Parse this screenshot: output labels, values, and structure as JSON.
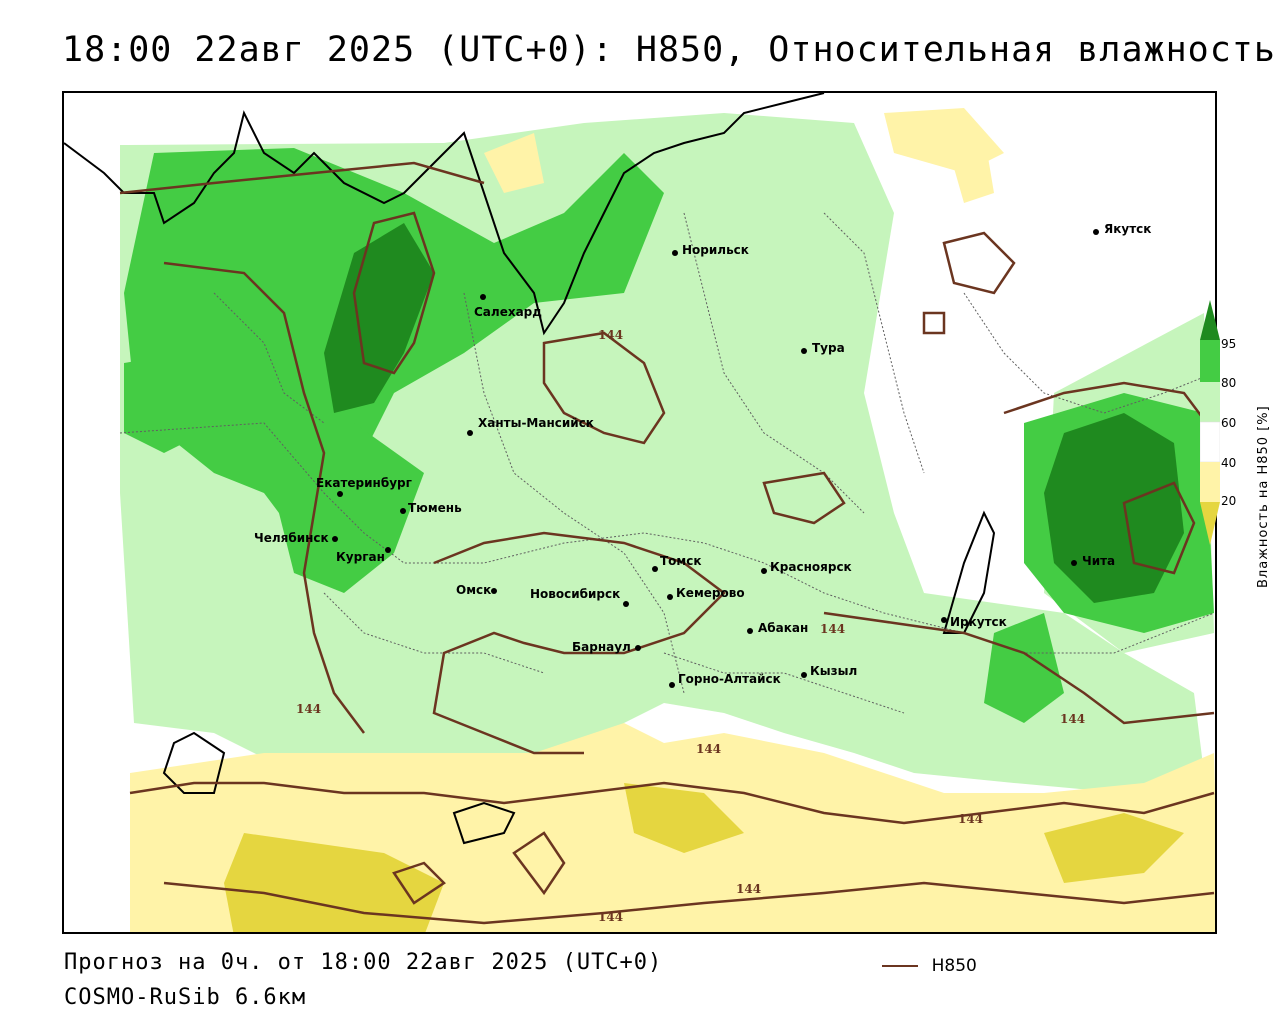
{
  "title": "18:00 22авг 2025 (UTC+0): H850, Относительная влажность",
  "footer": {
    "forecast": "Прогноз на 0ч. от 18:00 22авг 2025 (UTC+0)",
    "model": "COSMO-RuSib 6.6км",
    "line_legend": "H850"
  },
  "legend": {
    "title": "Влажность на H850 [%]",
    "ticks": [
      "95",
      "80",
      "60",
      "40",
      "20"
    ],
    "colors": {
      "c95": "#1f8a1f",
      "c80": "#44cc44",
      "c60": "#c6f5bc",
      "c40": "#ffffff",
      "c20": "#fff3a8",
      "c0": "#e5d640"
    }
  },
  "contour_color": "#6b3520",
  "cities": [
    {
      "name": "Якутск"
    },
    {
      "name": "Норильск"
    },
    {
      "name": "Салехард"
    },
    {
      "name": "Тура"
    },
    {
      "name": "Ханты-Мансийск"
    },
    {
      "name": "Екатеринбург"
    },
    {
      "name": "Тюмень"
    },
    {
      "name": "Челябинск"
    },
    {
      "name": "Курган"
    },
    {
      "name": "Омск"
    },
    {
      "name": "Новосибирск"
    },
    {
      "name": "Томск"
    },
    {
      "name": "Кемерово"
    },
    {
      "name": "Красноярск"
    },
    {
      "name": "Абакан"
    },
    {
      "name": "Барнаул"
    },
    {
      "name": "Горно-Алтайск"
    },
    {
      "name": "Кызыл"
    },
    {
      "name": "Иркутск"
    },
    {
      "name": "Чита"
    }
  ],
  "contour_labels": [
    "144",
    "144",
    "144",
    "144",
    "144",
    "144",
    "144",
    "144"
  ]
}
